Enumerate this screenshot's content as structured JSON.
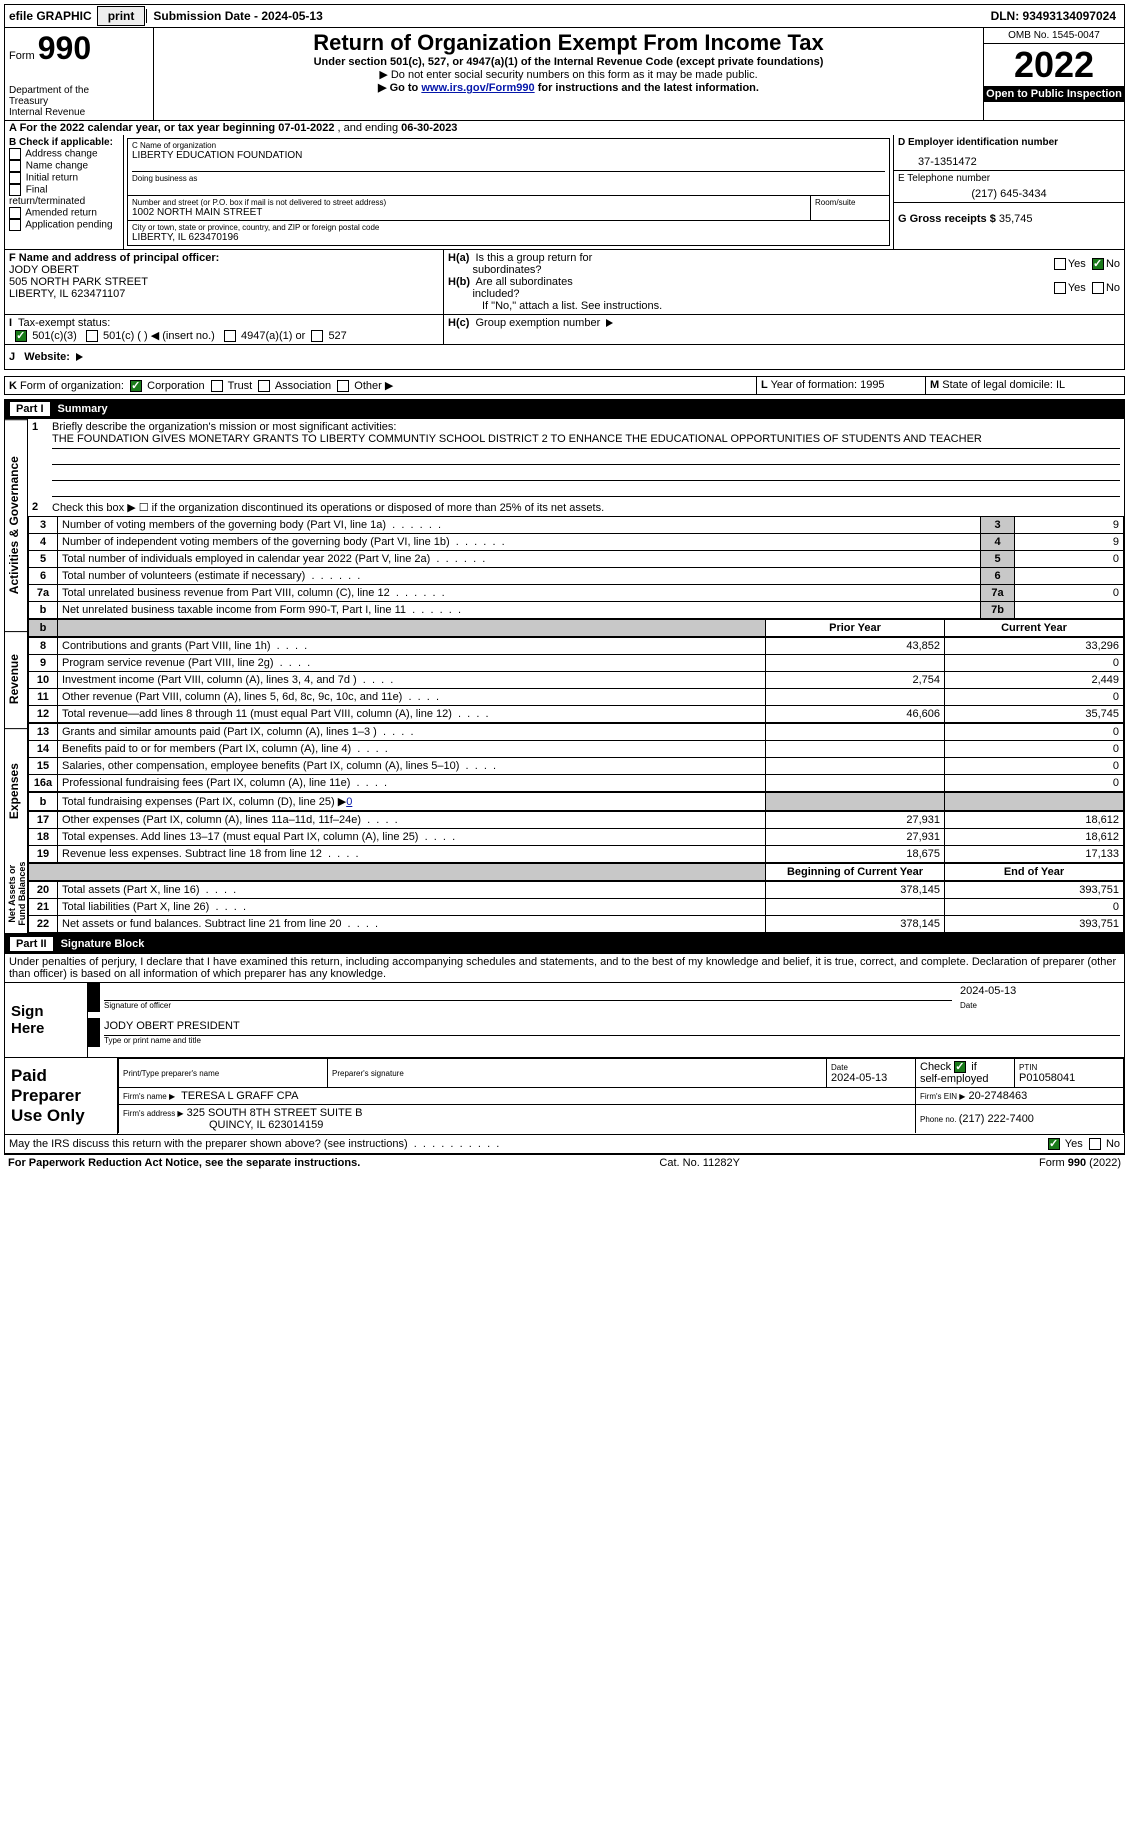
{
  "topbar": {
    "efile_label": "efile GRAPHIC",
    "print_btn": "print",
    "submission_label": "Submission Date - 2024-05-13",
    "dln_label": "DLN: 93493134097024"
  },
  "header": {
    "form_prefix": "Form",
    "form_number": "990",
    "title": "Return of Organization Exempt From Income Tax",
    "subtitle": "Under section 501(c), 527, or 4947(a)(1) of the Internal Revenue Code (except private foundations)",
    "ssn_note": "▶ Do not enter social security numbers on this form as it may be made public.",
    "goto_prefix": "▶ Go to ",
    "goto_link": "www.irs.gov/Form990",
    "goto_suffix": " for instructions and the latest information.",
    "dept": "Department of the Treasury\nInternal Revenue Service",
    "omb": "OMB No. 1545-0047",
    "year": "2022",
    "open_public": "Open to Public Inspection"
  },
  "sectionA": {
    "line": "A For the 2022 calendar year, or tax year beginning ",
    "begin": "07-01-2022",
    "mid": "   , and ending ",
    "end": "06-30-2023",
    "b_label": "B Check if applicable:",
    "b_opts": [
      "Address change",
      "Name change",
      "Initial return",
      "Final return/terminated",
      "Amended return",
      "Application pending"
    ],
    "c_label": "C Name of organization",
    "c_val": "LIBERTY EDUCATION FOUNDATION",
    "dba_label": "Doing business as",
    "dba_val": "",
    "addr_label": "Number and street (or P.O. box if mail is not delivered to street address)",
    "addr_val": "1002 NORTH MAIN STREET",
    "room_label": "Room/suite",
    "city_label": "City or town, state or province, country, and ZIP or foreign postal code",
    "city_val": "LIBERTY, IL   623470196",
    "d_label": "D Employer identification number",
    "d_val": "37-1351472",
    "e_label": "E Telephone number",
    "e_val": "(217) 645-3434",
    "g_label": "G Gross receipts $",
    "g_val": "35,745",
    "f_label": "F Name and address of principal officer:",
    "f_name": "JODY OBERT",
    "f_addr1": "505 NORTH PARK STREET",
    "f_addr2": "LIBERTY, IL   623471107",
    "ha_label": "H(a)  Is this a group return for subordinates?",
    "hb_label": "H(b)  Are all subordinates included?",
    "h_note": "If \"No,\" attach a list. See instructions.",
    "hc_label": "H(c)  Group exemption number ▶",
    "yes": "Yes",
    "no": "No",
    "i_label": "I   Tax-exempt status:",
    "i_501c3": "501(c)(3)",
    "i_501c": "501(c) (  ) ◀ (insert no.)",
    "i_4947": "4947(a)(1) or",
    "i_527": "527",
    "j_label": "J   Website: ▶",
    "k_label": "K Form of organization:",
    "k_corp": "Corporation",
    "k_trust": "Trust",
    "k_assoc": "Association",
    "k_other": "Other ▶",
    "l_label": "L Year of formation: ",
    "l_val": "1995",
    "m_label": "M State of legal domicile: ",
    "m_val": "IL"
  },
  "part1": {
    "title": "Part I",
    "heading": "Summary",
    "q1_label": "Briefly describe the organization's mission or most significant activities:",
    "q1_text": "THE FOUNDATION GIVES MONETARY GRANTS TO LIBERTY COMMUNTIY SCHOOL DISTRICT 2 TO ENHANCE THE EDUCATIONAL OPPORTUNITIES OF STUDENTS AND TEACHER",
    "q2": "Check this box ▶ ☐  if the organization discontinued its operations or disposed of more than 25% of its net assets.",
    "rows_ag": [
      {
        "n": "3",
        "d": "Number of voting members of the governing body (Part VI, line 1a)",
        "box": "3",
        "v": "9"
      },
      {
        "n": "4",
        "d": "Number of independent voting members of the governing body (Part VI, line 1b)",
        "box": "4",
        "v": "9"
      },
      {
        "n": "5",
        "d": "Total number of individuals employed in calendar year 2022 (Part V, line 2a)",
        "box": "5",
        "v": "0"
      },
      {
        "n": "6",
        "d": "Total number of volunteers (estimate if necessary)",
        "box": "6",
        "v": ""
      },
      {
        "n": "7a",
        "d": "Total unrelated business revenue from Part VIII, column (C), line 12",
        "box": "7a",
        "v": "0"
      },
      {
        "n": "b",
        "d": "Net unrelated business taxable income from Form 990-T, Part I, line 11",
        "box": "7b",
        "v": ""
      }
    ],
    "prior_h": "Prior Year",
    "curr_h": "Current Year",
    "rev_rows": [
      {
        "n": "8",
        "d": "Contributions and grants (Part VIII, line 1h)",
        "p": "43,852",
        "c": "33,296"
      },
      {
        "n": "9",
        "d": "Program service revenue (Part VIII, line 2g)",
        "p": "",
        "c": "0"
      },
      {
        "n": "10",
        "d": "Investment income (Part VIII, column (A), lines 3, 4, and 7d )",
        "p": "2,754",
        "c": "2,449"
      },
      {
        "n": "11",
        "d": "Other revenue (Part VIII, column (A), lines 5, 6d, 8c, 9c, 10c, and 11e)",
        "p": "",
        "c": "0"
      },
      {
        "n": "12",
        "d": "Total revenue—add lines 8 through 11 (must equal Part VIII, column (A), line 12)",
        "p": "46,606",
        "c": "35,745"
      }
    ],
    "exp_rows": [
      {
        "n": "13",
        "d": "Grants and similar amounts paid (Part IX, column (A), lines 1–3 )",
        "p": "",
        "c": "0"
      },
      {
        "n": "14",
        "d": "Benefits paid to or for members (Part IX, column (A), line 4)",
        "p": "",
        "c": "0"
      },
      {
        "n": "15",
        "d": "Salaries, other compensation, employee benefits (Part IX, column (A), lines 5–10)",
        "p": "",
        "c": "0"
      },
      {
        "n": "16a",
        "d": "Professional fundraising fees (Part IX, column (A), line 11e)",
        "p": "",
        "c": "0"
      }
    ],
    "exp_b": {
      "n": "b",
      "d": "Total fundraising expenses (Part IX, column (D), line 25) ▶",
      "v": "0"
    },
    "exp_rows2": [
      {
        "n": "17",
        "d": "Other expenses (Part IX, column (A), lines 11a–11d, 11f–24e)",
        "p": "27,931",
        "c": "18,612"
      },
      {
        "n": "18",
        "d": "Total expenses. Add lines 13–17 (must equal Part IX, column (A), line 25)",
        "p": "27,931",
        "c": "18,612"
      },
      {
        "n": "19",
        "d": "Revenue less expenses. Subtract line 18 from line 12",
        "p": "18,675",
        "c": "17,133"
      }
    ],
    "beg_h": "Beginning of Current Year",
    "end_h": "End of Year",
    "na_rows": [
      {
        "n": "20",
        "d": "Total assets (Part X, line 16)",
        "p": "378,145",
        "c": "393,751"
      },
      {
        "n": "21",
        "d": "Total liabilities (Part X, line 26)",
        "p": "",
        "c": "0"
      },
      {
        "n": "22",
        "d": "Net assets or fund balances. Subtract line 21 from line 20",
        "p": "378,145",
        "c": "393,751"
      }
    ],
    "side_ag": "Activities & Governance",
    "side_rev": "Revenue",
    "side_exp": "Expenses",
    "side_na": "Net Assets or Fund Balances"
  },
  "part2": {
    "title": "Part II",
    "heading": "Signature Block",
    "decl": "Under penalties of perjury, I declare that I have examined this return, including accompanying schedules and statements, and to the best of my knowledge and belief, it is true, correct, and complete. Declaration of preparer (other than officer) is based on all information of which preparer has any knowledge.",
    "sign_here": "Sign Here",
    "sig_officer_lbl": "Signature of officer",
    "sig_date": "2024-05-13",
    "date_lbl": "Date",
    "sig_name": "JODY OBERT  PRESIDENT",
    "sig_name_lbl": "Type or print name and title",
    "paid_label": "Paid Preparer Use Only",
    "prep_name_lbl": "Print/Type preparer's name",
    "prep_sig_lbl": "Preparer's signature",
    "prep_date_lbl": "Date",
    "prep_date": "2024-05-13",
    "prep_check_lbl": "Check ☑ if self-employed",
    "ptin_lbl": "PTIN",
    "ptin": "P01058041",
    "firm_name_lbl": "Firm's name      ▶",
    "firm_name": "TERESA L GRAFF CPA",
    "firm_ein_lbl": "Firm's EIN ▶",
    "firm_ein": "20-2748463",
    "firm_addr_lbl": "Firm's address ▶",
    "firm_addr1": "325 SOUTH 8TH STREET SUITE B",
    "firm_addr2": "QUINCY, IL   623014159",
    "firm_phone_lbl": "Phone no. ",
    "firm_phone": "(217) 222-7400",
    "discuss": "May the IRS discuss this return with the preparer shown above? (see instructions)"
  },
  "footer": {
    "pra": "For Paperwork Reduction Act Notice, see the separate instructions.",
    "cat": "Cat. No. 11282Y",
    "form": "Form 990 (2022)"
  }
}
